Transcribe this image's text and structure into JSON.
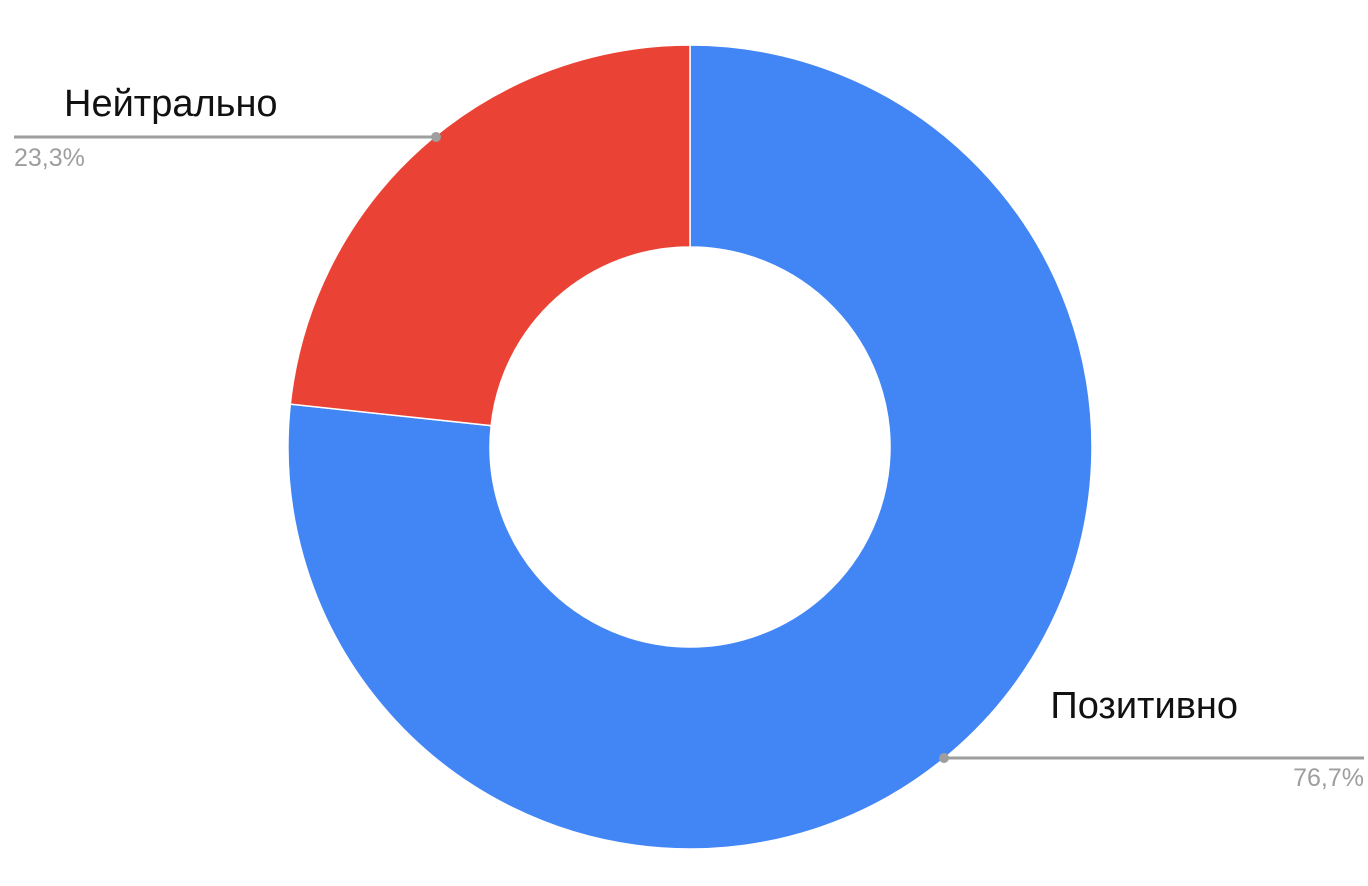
{
  "chart_data": {
    "type": "pie",
    "donut": true,
    "title": "",
    "slices": [
      {
        "label": "Позитивно",
        "value": 76.7,
        "value_label": "76,7%",
        "color": "#4285f4"
      },
      {
        "label": "Нейтрально",
        "value": 23.3,
        "value_label": "23,3%",
        "color": "#ea4335"
      }
    ],
    "legend": "none",
    "start_angle_deg": 0,
    "direction": "clockwise"
  }
}
